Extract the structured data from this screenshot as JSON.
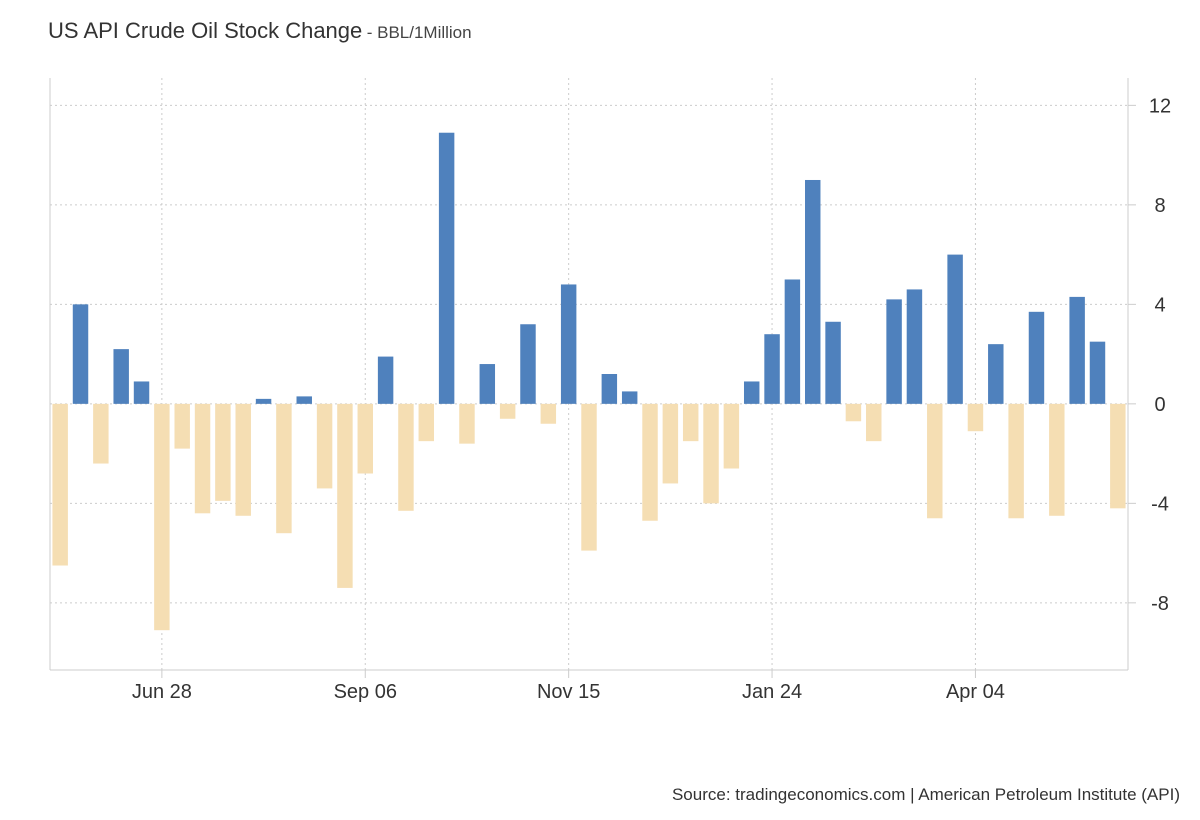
{
  "chart_title": "US API Crude Oil Stock Change",
  "chart_subtitle": "- BBL/1Million",
  "source": "Source: tradingeconomics.com | American Petroleum Institute (API)",
  "colors": {
    "positive": "#4f81bd",
    "negative": "#f5deb3",
    "grid": "#cccccc",
    "axis": "#cccccc"
  },
  "chart_data": {
    "type": "bar",
    "title": "US API Crude Oil Stock Change",
    "subtitle": "- BBL/1Million",
    "xlabel": "",
    "ylabel": "",
    "ylim": [
      -10.7,
      13.1
    ],
    "y_ticks": [
      12,
      8,
      4,
      0,
      -4,
      -8
    ],
    "x_tick_labels": [
      "Jun 28",
      "Sep 06",
      "Nov 15",
      "Jan 24",
      "Apr 04"
    ],
    "x_tick_bar_index": [
      5,
      15,
      25,
      35,
      45
    ],
    "grid": true,
    "legend": "none",
    "values": [
      -6.5,
      4.0,
      -2.4,
      2.2,
      0.9,
      -9.1,
      -1.8,
      -4.4,
      -3.9,
      -4.5,
      0.2,
      -5.2,
      0.3,
      -3.4,
      -7.4,
      -2.8,
      1.9,
      -4.3,
      -1.5,
      10.9,
      -1.6,
      1.6,
      -0.6,
      3.2,
      -0.8,
      4.8,
      -5.9,
      1.2,
      0.5,
      -4.7,
      -3.2,
      -1.5,
      -4.0,
      -2.6,
      0.9,
      2.8,
      5.0,
      9.0,
      3.3,
      -0.7,
      -1.5,
      4.2,
      4.6,
      -4.6,
      6.0,
      -1.1,
      2.4,
      -4.6,
      3.7,
      -4.5,
      4.3,
      2.5,
      -4.2
    ]
  }
}
